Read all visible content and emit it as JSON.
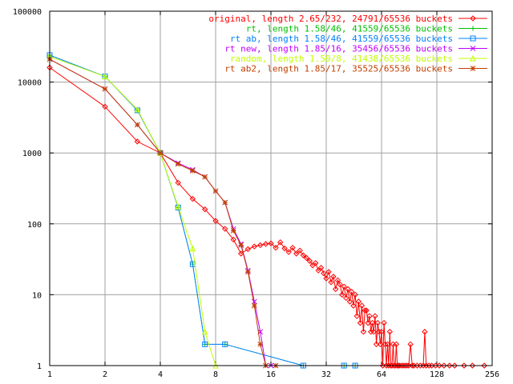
{
  "chart_data": {
    "type": "line",
    "title": "",
    "xlabel": "",
    "ylabel": "",
    "xscale": "log2",
    "yscale": "log10",
    "xlim": [
      1,
      256
    ],
    "ylim": [
      1,
      100000
    ],
    "grid": true,
    "legend_position": "top-right",
    "x_ticks": [
      "1",
      "2",
      "4",
      "8",
      "16",
      "32",
      "64",
      "128",
      "256"
    ],
    "y_ticks": [
      "1",
      "10",
      "100",
      "1000",
      "10000",
      "100000"
    ],
    "series": [
      {
        "name": "original, length 2.65/232, 24791/65536 buckets",
        "color": "#ff0000",
        "marker": "diamond",
        "points": [
          [
            1,
            16000
          ],
          [
            2,
            4500
          ],
          [
            3,
            1450
          ],
          [
            4,
            1000
          ],
          [
            5,
            380
          ],
          [
            6,
            225
          ],
          [
            7,
            160
          ],
          [
            8,
            110
          ],
          [
            9,
            85
          ],
          [
            10,
            60
          ],
          [
            11,
            38
          ],
          [
            12,
            44
          ],
          [
            13,
            48
          ],
          [
            14,
            50
          ],
          [
            15,
            52
          ],
          [
            16,
            53
          ],
          [
            17,
            46
          ],
          [
            18,
            55
          ],
          [
            19,
            45
          ],
          [
            20,
            40
          ],
          [
            21,
            46
          ],
          [
            22,
            38
          ],
          [
            23,
            42
          ],
          [
            24,
            36
          ],
          [
            25,
            33
          ],
          [
            26,
            30
          ],
          [
            27,
            26
          ],
          [
            28,
            28
          ],
          [
            29,
            22
          ],
          [
            30,
            24
          ],
          [
            31,
            20
          ],
          [
            32,
            17
          ],
          [
            33,
            21
          ],
          [
            34,
            15
          ],
          [
            35,
            18
          ],
          [
            36,
            12
          ],
          [
            37,
            16
          ],
          [
            38,
            14
          ],
          [
            39,
            10
          ],
          [
            40,
            13
          ],
          [
            41,
            9
          ],
          [
            42,
            12
          ],
          [
            43,
            8
          ],
          [
            44,
            11
          ],
          [
            45,
            7
          ],
          [
            46,
            10
          ],
          [
            47,
            5
          ],
          [
            48,
            8
          ],
          [
            49,
            4
          ],
          [
            50,
            7
          ],
          [
            51,
            3
          ],
          [
            52,
            6
          ],
          [
            53,
            6
          ],
          [
            54,
            4
          ],
          [
            55,
            5
          ],
          [
            56,
            3
          ],
          [
            57,
            4
          ],
          [
            58,
            3
          ],
          [
            59,
            5
          ],
          [
            60,
            2
          ],
          [
            61,
            4
          ],
          [
            62,
            3
          ],
          [
            63,
            2
          ],
          [
            64,
            3
          ],
          [
            65,
            1
          ],
          [
            66,
            4
          ],
          [
            67,
            2
          ],
          [
            68,
            1
          ],
          [
            69,
            2
          ],
          [
            70,
            1
          ],
          [
            71,
            3
          ],
          [
            72,
            1
          ],
          [
            73,
            1
          ],
          [
            74,
            2
          ],
          [
            75,
            1
          ],
          [
            76,
            1
          ],
          [
            77,
            2
          ],
          [
            78,
            1
          ],
          [
            79,
            1
          ],
          [
            80,
            1
          ],
          [
            82,
            1
          ],
          [
            84,
            1
          ],
          [
            86,
            1
          ],
          [
            88,
            1
          ],
          [
            90,
            1
          ],
          [
            92,
            2
          ],
          [
            94,
            1
          ],
          [
            96,
            1
          ],
          [
            100,
            1
          ],
          [
            104,
            1
          ],
          [
            108,
            1
          ],
          [
            110,
            3
          ],
          [
            112,
            1
          ],
          [
            116,
            1
          ],
          [
            120,
            1
          ],
          [
            126,
            1
          ],
          [
            132,
            1
          ],
          [
            140,
            1
          ],
          [
            150,
            1
          ],
          [
            160,
            1
          ],
          [
            180,
            1
          ],
          [
            200,
            1
          ],
          [
            232,
            1
          ]
        ]
      },
      {
        "name": "rt, length 1.58/46, 41559/65536 buckets",
        "color": "#00c000",
        "marker": "plus",
        "points": [
          [
            1,
            24000
          ],
          [
            2,
            12000
          ],
          [
            3,
            4000
          ],
          [
            4,
            1000
          ],
          [
            5,
            170
          ],
          [
            6,
            27
          ],
          [
            7,
            2
          ],
          [
            9,
            2
          ],
          [
            24,
            1
          ],
          [
            40,
            1
          ],
          [
            46,
            1
          ]
        ]
      },
      {
        "name": "rt ab, length 1.58/46, 41559/65536 buckets",
        "color": "#0080ff",
        "marker": "square",
        "points": [
          [
            1,
            24000
          ],
          [
            2,
            12000
          ],
          [
            3,
            4000
          ],
          [
            4,
            1000
          ],
          [
            5,
            170
          ],
          [
            6,
            27
          ],
          [
            7,
            2
          ],
          [
            9,
            2
          ],
          [
            24,
            1
          ],
          [
            40,
            1
          ],
          [
            46,
            1
          ]
        ]
      },
      {
        "name": "rt new, length 1.85/16, 35456/65536 buckets",
        "color": "#c000ff",
        "marker": "cross",
        "points": [
          [
            1,
            21000
          ],
          [
            2,
            8000
          ],
          [
            3,
            2500
          ],
          [
            4,
            1000
          ],
          [
            5,
            720
          ],
          [
            6,
            580
          ],
          [
            7,
            460
          ],
          [
            8,
            290
          ],
          [
            9,
            200
          ],
          [
            10,
            85
          ],
          [
            11,
            52
          ],
          [
            12,
            22
          ],
          [
            13,
            8
          ],
          [
            14,
            3
          ],
          [
            15,
            1
          ],
          [
            16,
            1
          ]
        ]
      },
      {
        "name": "random, length 1.59/8, 41438/65536 buckets",
        "color": "#c0ff00",
        "marker": "triangle",
        "points": [
          [
            1,
            23000
          ],
          [
            2,
            12000
          ],
          [
            3,
            4100
          ],
          [
            4,
            1000
          ],
          [
            5,
            175
          ],
          [
            6,
            45
          ],
          [
            7,
            3
          ],
          [
            8,
            1
          ]
        ]
      },
      {
        "name": "rt ab2, length 1.85/17, 35525/65536 buckets",
        "color": "#c04000",
        "marker": "star",
        "points": [
          [
            1,
            21000
          ],
          [
            2,
            8000
          ],
          [
            3,
            2500
          ],
          [
            4,
            1000
          ],
          [
            5,
            700
          ],
          [
            6,
            560
          ],
          [
            7,
            460
          ],
          [
            8,
            290
          ],
          [
            9,
            200
          ],
          [
            10,
            80
          ],
          [
            11,
            50
          ],
          [
            12,
            21
          ],
          [
            13,
            7
          ],
          [
            14,
            2
          ],
          [
            15,
            1
          ],
          [
            17,
            1
          ]
        ]
      }
    ]
  }
}
